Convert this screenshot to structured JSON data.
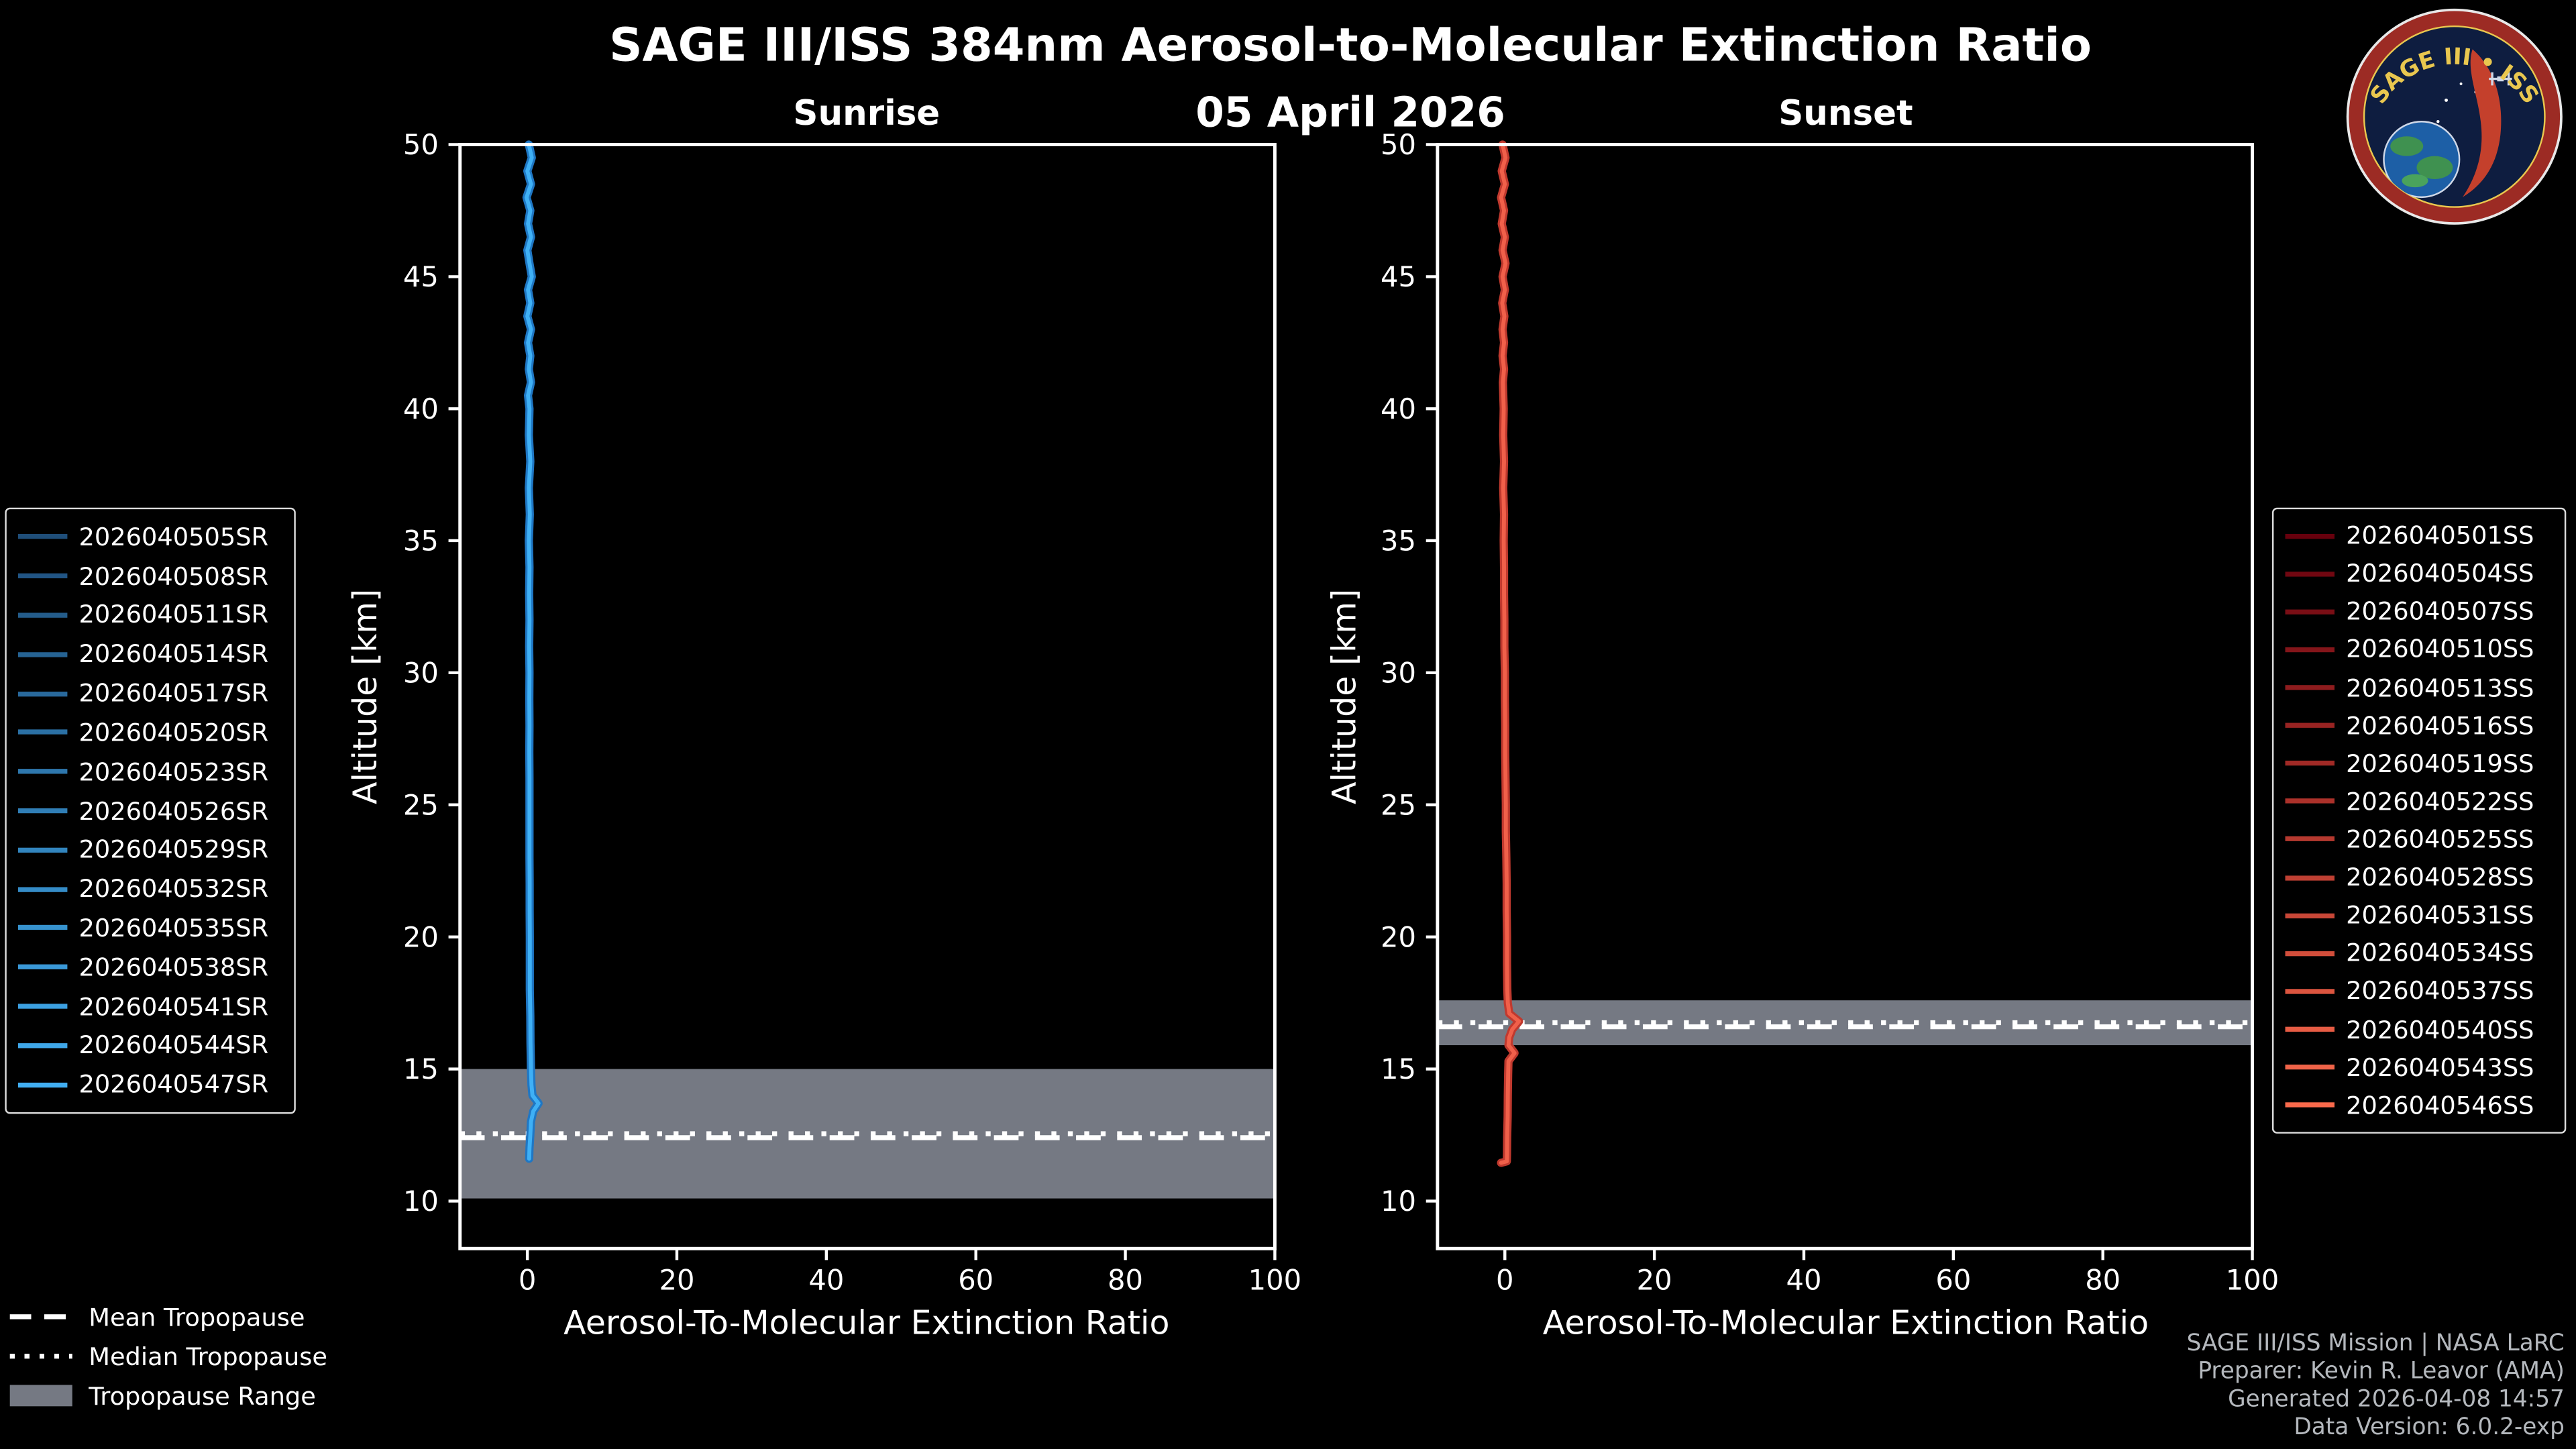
{
  "page": {
    "title": "SAGE III/ISS 384nm Aerosol-to-Molecular Extinction Ratio",
    "date": "05 April 2026",
    "background": "#000000"
  },
  "logo": {
    "title": "SAGE III • ISS"
  },
  "footer": {
    "credits": [
      "SAGE III/ISS Mission | NASA LaRC",
      "Preparer: Kevin R. Leavor (AMA)",
      "Generated 2026-04-08 14:57",
      "Data Version: 6.0.2-exp"
    ]
  },
  "tropopause_legend": [
    {
      "label": "Mean Tropopause",
      "style": "dashed"
    },
    {
      "label": "Median Tropopause",
      "style": "dotted"
    },
    {
      "label": "Tropopause Range",
      "style": "band"
    }
  ],
  "chart_data": [
    {
      "type": "line",
      "title": "Sunrise",
      "xlabel": "Aerosol-To-Molecular Extinction Ratio",
      "ylabel": "Altitude [km]",
      "xlim": [
        -9,
        100
      ],
      "ylim": [
        8.2,
        50
      ],
      "xticks": [
        0,
        20,
        40,
        60,
        80,
        100
      ],
      "yticks": [
        10,
        15,
        20,
        25,
        30,
        35,
        40,
        45,
        50
      ],
      "line_outer": "#1f77c4",
      "line_inner": "#3fb0f5",
      "band_color": "#757983",
      "tropopause": {
        "mean": 12.4,
        "median": 12.55,
        "range": [
          10.1,
          15.0
        ]
      },
      "series": [
        {
          "name": "2026040505SR",
          "color": "#1f4e79"
        },
        {
          "name": "2026040508SR",
          "color": "#215585"
        },
        {
          "name": "2026040511SR",
          "color": "#245c8a"
        },
        {
          "name": "2026040514SR",
          "color": "#266393"
        },
        {
          "name": "2026040517SR",
          "color": "#29699c"
        },
        {
          "name": "2026040520SR",
          "color": "#2b70a4"
        },
        {
          "name": "2026040523SR",
          "color": "#2e77ad"
        },
        {
          "name": "2026040526SR",
          "color": "#307eb6"
        },
        {
          "name": "2026040529SR",
          "color": "#3285be"
        },
        {
          "name": "2026040532SR",
          "color": "#358cc7"
        },
        {
          "name": "2026040535SR",
          "color": "#3793cf"
        },
        {
          "name": "2026040538SR",
          "color": "#3a99d8"
        },
        {
          "name": "2026040541SR",
          "color": "#3ca0e1"
        },
        {
          "name": "2026040544SR",
          "color": "#3fa7e9"
        },
        {
          "name": "2026040547SR",
          "color": "#41aef2"
        }
      ],
      "profile": [
        [
          0.2,
          50.0
        ],
        [
          0.6,
          49.5
        ],
        [
          0.0,
          49.0
        ],
        [
          0.5,
          48.5
        ],
        [
          -0.1,
          48.0
        ],
        [
          0.4,
          47.5
        ],
        [
          0.1,
          47.0
        ],
        [
          0.5,
          46.5
        ],
        [
          0.0,
          46.0
        ],
        [
          0.3,
          45.5
        ],
        [
          0.6,
          45.0
        ],
        [
          0.1,
          44.5
        ],
        [
          0.4,
          44.0
        ],
        [
          0.0,
          43.5
        ],
        [
          0.5,
          43.0
        ],
        [
          0.1,
          42.5
        ],
        [
          0.4,
          42.0
        ],
        [
          0.2,
          41.5
        ],
        [
          0.5,
          41.0
        ],
        [
          0.1,
          40.5
        ],
        [
          0.3,
          40.0
        ],
        [
          0.2,
          39.0
        ],
        [
          0.4,
          38.0
        ],
        [
          0.2,
          37.0
        ],
        [
          0.35,
          36.0
        ],
        [
          0.2,
          35.0
        ],
        [
          0.3,
          34.0
        ],
        [
          0.25,
          33.0
        ],
        [
          0.3,
          32.0
        ],
        [
          0.25,
          31.0
        ],
        [
          0.3,
          30.0
        ],
        [
          0.28,
          29.0
        ],
        [
          0.3,
          28.0
        ],
        [
          0.28,
          27.0
        ],
        [
          0.3,
          26.0
        ],
        [
          0.3,
          25.0
        ],
        [
          0.3,
          24.0
        ],
        [
          0.3,
          23.0
        ],
        [
          0.32,
          22.0
        ],
        [
          0.32,
          21.0
        ],
        [
          0.33,
          20.0
        ],
        [
          0.35,
          19.0
        ],
        [
          0.35,
          18.0
        ],
        [
          0.4,
          17.0
        ],
        [
          0.42,
          16.0
        ],
        [
          0.5,
          15.0
        ],
        [
          0.55,
          14.4
        ],
        [
          0.7,
          14.0
        ],
        [
          1.5,
          13.7
        ],
        [
          0.8,
          13.4
        ],
        [
          0.5,
          13.0
        ],
        [
          0.4,
          12.5
        ],
        [
          0.3,
          12.0
        ],
        [
          0.25,
          11.6
        ]
      ]
    },
    {
      "type": "line",
      "title": "Sunset",
      "xlabel": "Aerosol-To-Molecular Extinction Ratio",
      "ylabel": "Altitude [km]",
      "xlim": [
        -9,
        100
      ],
      "ylim": [
        8.2,
        50
      ],
      "xticks": [
        0,
        20,
        40,
        60,
        80,
        100
      ],
      "yticks": [
        10,
        15,
        20,
        25,
        30,
        35,
        40,
        45,
        50
      ],
      "line_outer": "#c0392e",
      "line_inner": "#f0604a",
      "band_color": "#757983",
      "tropopause": {
        "mean": 16.6,
        "median": 16.75,
        "range": [
          15.9,
          17.6
        ]
      },
      "series": [
        {
          "name": "2026040501SS",
          "color": "#67000d"
        },
        {
          "name": "2026040504SS",
          "color": "#710711"
        },
        {
          "name": "2026040507SS",
          "color": "#7a0e15"
        },
        {
          "name": "2026040510SS",
          "color": "#84151a"
        },
        {
          "name": "2026040513SS",
          "color": "#8e1c1e"
        },
        {
          "name": "2026040516SS",
          "color": "#982322"
        },
        {
          "name": "2026040519SS",
          "color": "#a12a26"
        },
        {
          "name": "2026040522SS",
          "color": "#ab312a"
        },
        {
          "name": "2026040525SS",
          "color": "#b5392f"
        },
        {
          "name": "2026040528SS",
          "color": "#bf4033"
        },
        {
          "name": "2026040531SS",
          "color": "#c84737"
        },
        {
          "name": "2026040534SS",
          "color": "#d24e3b"
        },
        {
          "name": "2026040537SS",
          "color": "#dc553f"
        },
        {
          "name": "2026040540SS",
          "color": "#e65c44"
        },
        {
          "name": "2026040543SS",
          "color": "#ef6348"
        },
        {
          "name": "2026040546SS",
          "color": "#f96a4c"
        }
      ],
      "profile": [
        [
          -0.3,
          50.0
        ],
        [
          0.1,
          49.5
        ],
        [
          -0.4,
          49.0
        ],
        [
          0.0,
          48.5
        ],
        [
          -0.5,
          48.0
        ],
        [
          -0.1,
          47.5
        ],
        [
          -0.4,
          47.0
        ],
        [
          0.0,
          46.5
        ],
        [
          -0.3,
          46.0
        ],
        [
          0.1,
          45.5
        ],
        [
          -0.3,
          45.0
        ],
        [
          0.0,
          44.5
        ],
        [
          -0.35,
          44.0
        ],
        [
          -0.05,
          43.5
        ],
        [
          -0.3,
          43.0
        ],
        [
          -0.1,
          42.5
        ],
        [
          -0.3,
          42.0
        ],
        [
          -0.1,
          41.5
        ],
        [
          -0.25,
          41.0
        ],
        [
          -0.15,
          40.0
        ],
        [
          -0.2,
          39.0
        ],
        [
          -0.1,
          38.0
        ],
        [
          -0.2,
          37.0
        ],
        [
          -0.1,
          36.0
        ],
        [
          -0.15,
          35.0
        ],
        [
          -0.1,
          34.0
        ],
        [
          -0.1,
          33.0
        ],
        [
          -0.05,
          32.0
        ],
        [
          -0.05,
          31.0
        ],
        [
          0.0,
          30.0
        ],
        [
          0.0,
          29.0
        ],
        [
          0.05,
          28.0
        ],
        [
          0.05,
          27.0
        ],
        [
          0.1,
          26.0
        ],
        [
          0.15,
          25.0
        ],
        [
          0.15,
          24.0
        ],
        [
          0.2,
          23.0
        ],
        [
          0.25,
          22.0
        ],
        [
          0.25,
          21.0
        ],
        [
          0.3,
          20.0
        ],
        [
          0.3,
          19.0
        ],
        [
          0.35,
          18.0
        ],
        [
          0.4,
          17.5
        ],
        [
          0.6,
          17.1
        ],
        [
          1.9,
          16.8
        ],
        [
          1.0,
          16.5
        ],
        [
          0.6,
          16.2
        ],
        [
          0.5,
          15.9
        ],
        [
          1.3,
          15.6
        ],
        [
          0.5,
          15.3
        ],
        [
          0.45,
          14.8
        ],
        [
          0.4,
          14.0
        ],
        [
          0.38,
          13.2
        ],
        [
          0.32,
          12.4
        ],
        [
          0.3,
          11.8
        ],
        [
          0.28,
          11.5
        ],
        [
          -0.5,
          11.45
        ]
      ]
    }
  ]
}
